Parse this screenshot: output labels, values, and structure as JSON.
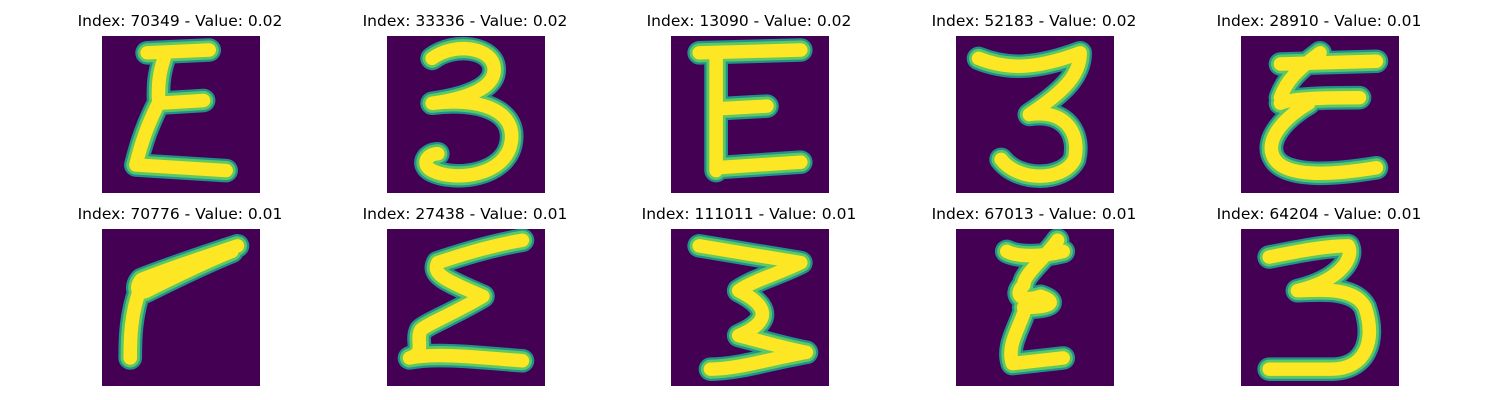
{
  "colors": {
    "background": "#440154",
    "stroke_inner": "#fde725",
    "stroke_mid": "#5ec962",
    "stroke_outer": "#21918c"
  },
  "panels": [
    {
      "title": "Index: 70349 - Value: 0.02",
      "image": "handwritten-e-like-3"
    },
    {
      "title": "Index: 33336 - Value: 0.02",
      "image": "handwritten-3"
    },
    {
      "title": "Index: 13090 - Value: 0.02",
      "image": "handwritten-e-like-3"
    },
    {
      "title": "Index: 52183 - Value: 0.02",
      "image": "handwritten-3"
    },
    {
      "title": "Index: 28910 - Value: 0.01",
      "image": "handwritten-e-like-3"
    },
    {
      "title": "Index: 70776 - Value: 0.01",
      "image": "handwritten-7-like-stroke"
    },
    {
      "title": "Index: 27438 - Value: 0.01",
      "image": "handwritten-e-like-3"
    },
    {
      "title": "Index: 111011 - Value: 0.01",
      "image": "handwritten-3"
    },
    {
      "title": "Index: 67013 - Value: 0.01",
      "image": "handwritten-e-like-3"
    },
    {
      "title": "Index: 64204 - Value: 0.01",
      "image": "handwritten-3"
    }
  ]
}
